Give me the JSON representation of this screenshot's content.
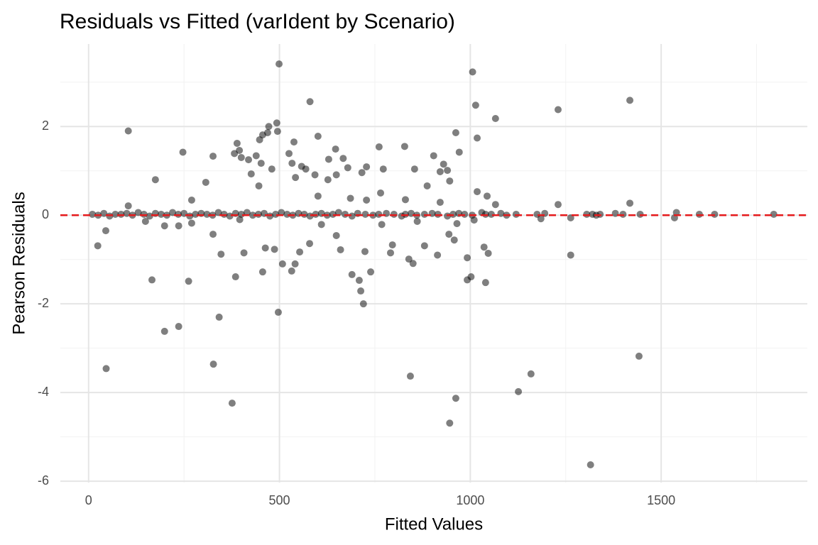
{
  "chart_data": {
    "type": "scatter",
    "title": "Residuals vs Fitted (varIdent by Scenario)",
    "x_label": "Fitted Values",
    "y_label": "Pearson Residuals",
    "xlim": [
      -74,
      1883
    ],
    "ylim": [
      -6.03,
      3.86
    ],
    "xticks": [
      0,
      500,
      1000,
      1500
    ],
    "yticks": [
      -6,
      -4,
      -2,
      0,
      2
    ],
    "x_minor_grid": [
      250,
      750,
      1250,
      1750
    ],
    "y_minor_grid": [
      -5,
      -3,
      -1,
      1,
      3
    ],
    "grid": true,
    "point_color": "#000000",
    "point_opacity": 0.5,
    "reference_line": {
      "y": 0,
      "color": "#e41a1c"
    },
    "x": [
      499,
      1006,
      580,
      1014,
      1418,
      1230,
      1066,
      104,
      493,
      472,
      469,
      456,
      448,
      389,
      395,
      382,
      326,
      400,
      439,
      452,
      419,
      247,
      525,
      538,
      495,
      601,
      761,
      962,
      1018,
      971,
      904,
      854,
      728,
      716,
      629,
      649,
      627,
      593,
      569,
      647,
      667,
      828,
      772,
      679,
      533,
      558,
      542,
      480,
      426,
      307,
      175,
      270,
      104,
      446,
      601,
      686,
      887,
      930,
      921,
      940,
      946,
      1018,
      1044,
      1066,
      1230,
      1418,
      921,
      765,
      728,
      830,
      24,
      45,
      46,
      166,
      199,
      236,
      262,
      327,
      342,
      376,
      385,
      497,
      347,
      407,
      463,
      487,
      456,
      508,
      532,
      541,
      553,
      579,
      649,
      660,
      690,
      709,
      713,
      720,
      724,
      739,
      791,
      796,
      839,
      850,
      843,
      880,
      914,
      944,
      958,
      962,
      946,
      992,
      1002,
      992,
      1036,
      1040,
      1047,
      1126,
      1159,
      1263,
      1263,
      1315,
      1442,
      326,
      270,
      236,
      199,
      149,
      610,
      768,
      861,
      965,
      1010,
      1185,
      1535,
      396,
      1795,
      1640,
      1600,
      1540,
      1445,
      1400,
      1380,
      1340,
      1330,
      1320,
      1305,
      1195,
      1175,
      1120,
      1095,
      1080,
      1055,
      1040,
      1030,
      1005,
      985,
      970,
      955,
      940,
      915,
      900,
      880,
      860,
      845,
      830,
      820,
      800,
      780,
      760,
      745,
      725,
      705,
      690,
      672,
      655,
      640,
      625,
      610,
      595,
      580,
      565,
      550,
      535,
      520,
      505,
      490,
      475,
      460,
      445,
      430,
      415,
      400,
      385,
      370,
      355,
      340,
      325,
      310,
      295,
      280,
      265,
      250,
      235,
      220,
      205,
      190,
      175,
      160,
      145,
      130,
      115,
      100,
      85,
      70,
      55,
      40,
      25,
      10
    ],
    "values": [
      3.41,
      3.23,
      2.56,
      2.48,
      2.59,
      2.38,
      2.18,
      1.9,
      2.08,
      2.0,
      1.86,
      1.81,
      1.7,
      1.62,
      1.46,
      1.39,
      1.33,
      1.3,
      1.34,
      1.17,
      1.25,
      1.42,
      1.39,
      1.65,
      1.89,
      1.78,
      1.54,
      1.86,
      1.74,
      1.42,
      1.34,
      1.04,
      1.09,
      0.96,
      1.26,
      0.91,
      0.8,
      0.91,
      1.04,
      1.49,
      1.28,
      1.55,
      1.04,
      1.07,
      1.17,
      1.1,
      0.85,
      1.04,
      0.93,
      0.74,
      0.8,
      0.34,
      0.21,
      0.66,
      0.43,
      0.38,
      0.66,
      1.15,
      0.98,
      1.01,
      0.77,
      0.53,
      0.43,
      0.24,
      0.24,
      0.27,
      0.29,
      0.5,
      0.34,
      0.35,
      -0.69,
      -0.35,
      -3.46,
      -1.46,
      -2.62,
      -2.51,
      -1.49,
      -3.36,
      -2.3,
      -4.24,
      -1.39,
      -2.19,
      -0.88,
      -0.85,
      -0.74,
      -0.77,
      -1.28,
      -1.1,
      -1.26,
      -1.1,
      -0.83,
      -0.64,
      -0.46,
      -0.78,
      -1.34,
      -1.47,
      -1.71,
      -2.0,
      -0.82,
      -1.28,
      -0.85,
      -0.67,
      -0.99,
      -1.09,
      -3.63,
      -0.69,
      -0.9,
      -0.43,
      -0.56,
      -4.13,
      -4.69,
      -1.46,
      -1.39,
      -0.96,
      -0.72,
      -1.52,
      -0.86,
      -3.98,
      -3.58,
      -0.9,
      -0.06,
      -5.63,
      -3.18,
      -0.43,
      -0.18,
      -0.24,
      -0.24,
      -0.14,
      -0.21,
      -0.21,
      -0.14,
      -0.19,
      -0.11,
      -0.08,
      -0.06,
      -0.1,
      0.02,
      0.02,
      0.02,
      0.06,
      0.02,
      0.02,
      0.04,
      0.02,
      0.0,
      0.02,
      0.02,
      0.04,
      0.02,
      0.02,
      0.0,
      0.04,
      0.02,
      0.02,
      0.06,
      0.0,
      0.02,
      0.04,
      0.02,
      -0.02,
      0.02,
      0.04,
      0.02,
      0.0,
      0.04,
      0.02,
      -0.02,
      0.02,
      0.04,
      0.02,
      0.0,
      0.02,
      0.04,
      -0.02,
      0.02,
      0.06,
      0.02,
      0.0,
      0.04,
      0.02,
      -0.02,
      0.02,
      0.04,
      0.0,
      0.02,
      0.06,
      0.02,
      -0.02,
      0.04,
      0.02,
      0.0,
      0.06,
      0.02,
      0.04,
      -0.02,
      0.02,
      0.06,
      0.0,
      0.02,
      0.04,
      0.02,
      -0.02,
      0.04,
      0.02,
      0.06,
      0.0,
      0.02,
      0.04,
      -0.02,
      0.02,
      0.06,
      0.0,
      0.04,
      0.02,
      0.02,
      -0.02,
      0.04,
      0.0,
      0.02
    ]
  }
}
